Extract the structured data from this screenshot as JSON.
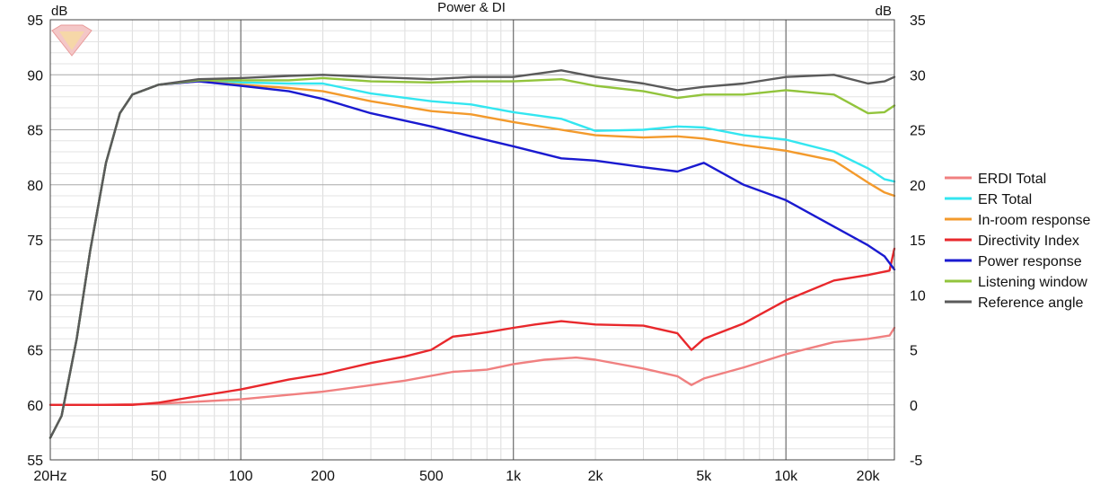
{
  "chart_data": {
    "type": "line",
    "title": "Power & DI",
    "ylabel_left": "dB",
    "ylabel_right": "dB",
    "x_scale": "log",
    "xlim": [
      20,
      25000
    ],
    "ylim": [
      55,
      95
    ],
    "ylim_right": [
      -5,
      35
    ],
    "x_ticks": [
      {
        "value": 20,
        "label": "20Hz"
      },
      {
        "value": 50,
        "label": "50"
      },
      {
        "value": 100,
        "label": "100"
      },
      {
        "value": 200,
        "label": "200"
      },
      {
        "value": 500,
        "label": "500"
      },
      {
        "value": 1000,
        "label": "1k"
      },
      {
        "value": 2000,
        "label": "2k"
      },
      {
        "value": 5000,
        "label": "5k"
      },
      {
        "value": 10000,
        "label": "10k"
      },
      {
        "value": 20000,
        "label": "20k"
      }
    ],
    "y_ticks_left": [
      "95",
      "90",
      "85",
      "80",
      "75",
      "70",
      "65",
      "60",
      "55"
    ],
    "y_ticks_right": [
      "35",
      "30",
      "25",
      "20",
      "15",
      "10",
      "5",
      "0",
      "-5"
    ],
    "grid": true,
    "legend_position": "right",
    "series": [
      {
        "name": "ERDI Total",
        "color": "#f08080",
        "axis": "right",
        "x": [
          20,
          30,
          50,
          100,
          200,
          400,
          600,
          800,
          1000,
          1300,
          1700,
          2000,
          3000,
          4000,
          4500,
          5000,
          7000,
          10000,
          15000,
          20000,
          24000,
          25000
        ],
        "y": [
          0,
          0,
          0.1,
          0.5,
          1.2,
          2.2,
          3.0,
          3.2,
          3.7,
          4.1,
          4.3,
          4.1,
          3.3,
          2.6,
          1.8,
          2.4,
          3.4,
          4.6,
          5.7,
          6.0,
          6.3,
          7.0
        ]
      },
      {
        "name": "ER Total",
        "color": "#33e6f0",
        "axis": "left",
        "x": [
          20,
          22,
          25,
          28,
          32,
          36,
          40,
          50,
          70,
          100,
          150,
          200,
          300,
          500,
          700,
          1000,
          1500,
          2000,
          3000,
          4000,
          5000,
          7000,
          10000,
          15000,
          20000,
          23000,
          25000
        ],
        "y": [
          57,
          59,
          66,
          74,
          82,
          86.5,
          88.2,
          89.1,
          89.5,
          89.3,
          89.2,
          89.2,
          88.3,
          87.6,
          87.3,
          86.6,
          86.0,
          84.9,
          85.0,
          85.3,
          85.2,
          84.5,
          84.1,
          83.0,
          81.5,
          80.5,
          80.3
        ]
      },
      {
        "name": "In-room response",
        "color": "#f39a2c",
        "axis": "left",
        "x": [
          20,
          22,
          25,
          28,
          32,
          36,
          40,
          50,
          70,
          100,
          150,
          200,
          300,
          500,
          700,
          1000,
          1500,
          2000,
          3000,
          4000,
          5000,
          7000,
          10000,
          15000,
          20000,
          23000,
          25000
        ],
        "y": [
          57,
          59,
          66,
          74,
          82,
          86.5,
          88.2,
          89.1,
          89.4,
          89.1,
          88.8,
          88.5,
          87.6,
          86.7,
          86.4,
          85.7,
          85.0,
          84.5,
          84.3,
          84.4,
          84.2,
          83.6,
          83.1,
          82.2,
          80.2,
          79.3,
          79.0
        ]
      },
      {
        "name": "Directivity Index",
        "color": "#e8282c",
        "axis": "right",
        "x": [
          20,
          30,
          40,
          50,
          70,
          100,
          150,
          200,
          300,
          400,
          500,
          600,
          700,
          800,
          1000,
          1200,
          1500,
          2000,
          3000,
          4000,
          4500,
          5000,
          7000,
          10000,
          15000,
          20000,
          24000,
          25000
        ],
        "y": [
          0,
          0,
          0,
          0.2,
          0.8,
          1.4,
          2.3,
          2.8,
          3.8,
          4.4,
          5.0,
          6.2,
          6.4,
          6.6,
          7.0,
          7.3,
          7.6,
          7.3,
          7.2,
          6.5,
          5.0,
          6.0,
          7.4,
          9.5,
          11.3,
          11.8,
          12.2,
          14.2
        ]
      },
      {
        "name": "Power response",
        "color": "#1a1ad0",
        "axis": "left",
        "x": [
          20,
          22,
          25,
          28,
          32,
          36,
          40,
          50,
          70,
          100,
          150,
          200,
          300,
          500,
          700,
          1000,
          1500,
          2000,
          3000,
          4000,
          5000,
          7000,
          10000,
          15000,
          20000,
          23000,
          25000
        ],
        "y": [
          57,
          59,
          66,
          74,
          82,
          86.5,
          88.2,
          89.1,
          89.4,
          89.0,
          88.5,
          87.8,
          86.5,
          85.3,
          84.4,
          83.5,
          82.4,
          82.2,
          81.6,
          81.2,
          82.0,
          80.0,
          78.6,
          76.2,
          74.5,
          73.5,
          72.3
        ]
      },
      {
        "name": "Listening window",
        "color": "#92c43c",
        "axis": "left",
        "x": [
          20,
          22,
          25,
          28,
          32,
          36,
          40,
          50,
          70,
          100,
          150,
          200,
          300,
          500,
          700,
          1000,
          1500,
          2000,
          3000,
          4000,
          5000,
          7000,
          10000,
          15000,
          20000,
          23000,
          25000
        ],
        "y": [
          57,
          59,
          66,
          74,
          82,
          86.5,
          88.2,
          89.1,
          89.5,
          89.5,
          89.5,
          89.7,
          89.4,
          89.3,
          89.4,
          89.4,
          89.6,
          89.0,
          88.5,
          87.9,
          88.2,
          88.2,
          88.6,
          88.2,
          86.5,
          86.6,
          87.2
        ]
      },
      {
        "name": "Reference angle",
        "color": "#5a5a5a",
        "axis": "left",
        "x": [
          20,
          22,
          25,
          28,
          32,
          36,
          40,
          50,
          70,
          100,
          150,
          200,
          300,
          500,
          700,
          1000,
          1500,
          2000,
          3000,
          4000,
          5000,
          7000,
          10000,
          15000,
          20000,
          23000,
          25000
        ],
        "y": [
          57,
          59,
          66,
          74,
          82,
          86.5,
          88.2,
          89.1,
          89.6,
          89.7,
          89.9,
          90.0,
          89.8,
          89.6,
          89.8,
          89.8,
          90.4,
          89.8,
          89.2,
          88.6,
          88.9,
          89.2,
          89.8,
          90.0,
          89.2,
          89.4,
          89.8
        ]
      }
    ]
  }
}
